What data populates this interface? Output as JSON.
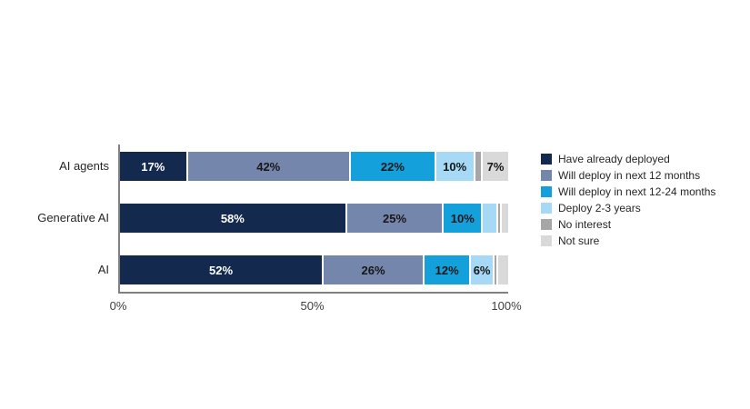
{
  "chart_data": {
    "type": "bar",
    "orientation": "horizontal",
    "stacked": true,
    "grid": false,
    "legend_position": "right",
    "categories": [
      "AI agents",
      "Generative AI",
      "AI"
    ],
    "series": [
      {
        "name": "Have already deployed",
        "color": "#13294e",
        "label_color": "#ffffff",
        "values": [
          17,
          58,
          52
        ]
      },
      {
        "name": "Will deploy in next 12 months",
        "color": "#7486ac",
        "label_color": "#171717",
        "values": [
          42,
          25,
          26
        ]
      },
      {
        "name": "Will deploy in next 12-24 months",
        "color": "#14a0da",
        "label_color": "#171717",
        "values": [
          22,
          10,
          12
        ]
      },
      {
        "name": "Deploy 2-3 years",
        "color": "#a5d9f5",
        "label_color": "#171717",
        "values": [
          10,
          4,
          6
        ]
      },
      {
        "name": "No interest",
        "color": "#a6a6a6",
        "label_color": "#171717",
        "values": [
          2,
          1,
          1
        ]
      },
      {
        "name": "Not sure",
        "color": "#d9d9d9",
        "label_color": "#171717",
        "values": [
          7,
          2,
          3
        ]
      }
    ],
    "x_axis": {
      "range": [
        0,
        100
      ],
      "ticks": [
        {
          "label": "0%",
          "value": 0
        },
        {
          "label": "50%",
          "value": 50
        },
        {
          "label": "100%",
          "value": 100
        }
      ]
    },
    "label_suffix": "%",
    "label_min_value": 6,
    "axis_color": "#808080"
  },
  "layout_text": {
    "title": ""
  }
}
